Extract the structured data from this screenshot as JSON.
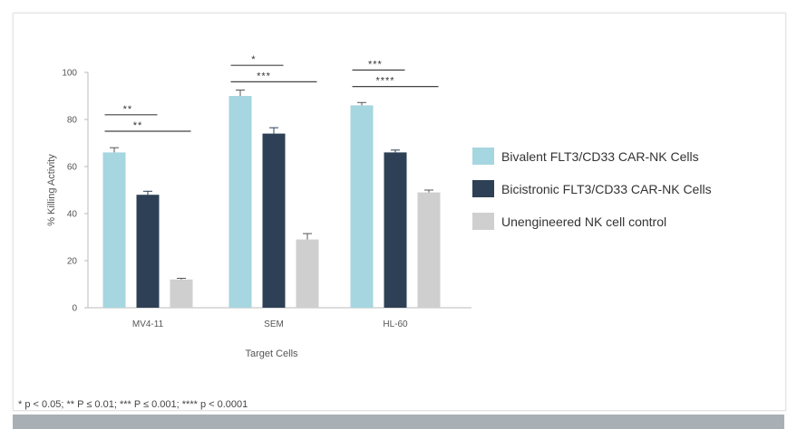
{
  "chart_data": {
    "type": "bar",
    "xlabel": "Target Cells",
    "ylabel": "% Killing Activity",
    "ylim": [
      0,
      100
    ],
    "yticks": [
      0,
      20,
      40,
      60,
      80,
      100
    ],
    "categories": [
      "MV4-11",
      "SEM",
      "HL-60"
    ],
    "series": [
      {
        "name": "Bivalent FLT3/CD33 CAR-NK Cells",
        "color": "#a6d6e0",
        "values": [
          66,
          90,
          86
        ],
        "errors": [
          2,
          2.5,
          1.2
        ]
      },
      {
        "name": "Bicistronic FLT3/CD33 CAR-NK Cells",
        "color": "#2e4055",
        "values": [
          48,
          74,
          66
        ],
        "errors": [
          1.5,
          2.5,
          1
        ]
      },
      {
        "name": "Unengineered NK cell control",
        "color": "#cfcfcf",
        "values": [
          12,
          29,
          49
        ],
        "errors": [
          0.5,
          2.5,
          1
        ]
      }
    ],
    "significance": [
      {
        "category": 0,
        "label": "**",
        "from_series": 0,
        "to_series": 1,
        "level": 82
      },
      {
        "category": 0,
        "label": "**",
        "from_series": 0,
        "to_series": 2,
        "level": 75
      },
      {
        "category": 1,
        "label": "*",
        "from_series": 0,
        "to_series": 1,
        "level": 103
      },
      {
        "category": 1,
        "label": "***",
        "from_series": 0,
        "to_series": 2,
        "level": 96
      },
      {
        "category": 2,
        "label": "***",
        "from_series": 0,
        "to_series": 1,
        "level": 101
      },
      {
        "category": 2,
        "label": "****",
        "from_series": 0,
        "to_series": 2,
        "level": 94
      }
    ],
    "legend_position": "right"
  },
  "footnote": "* p < 0.05; ** P ≤ 0.01; *** P ≤ 0.001; **** p < 0.0001"
}
